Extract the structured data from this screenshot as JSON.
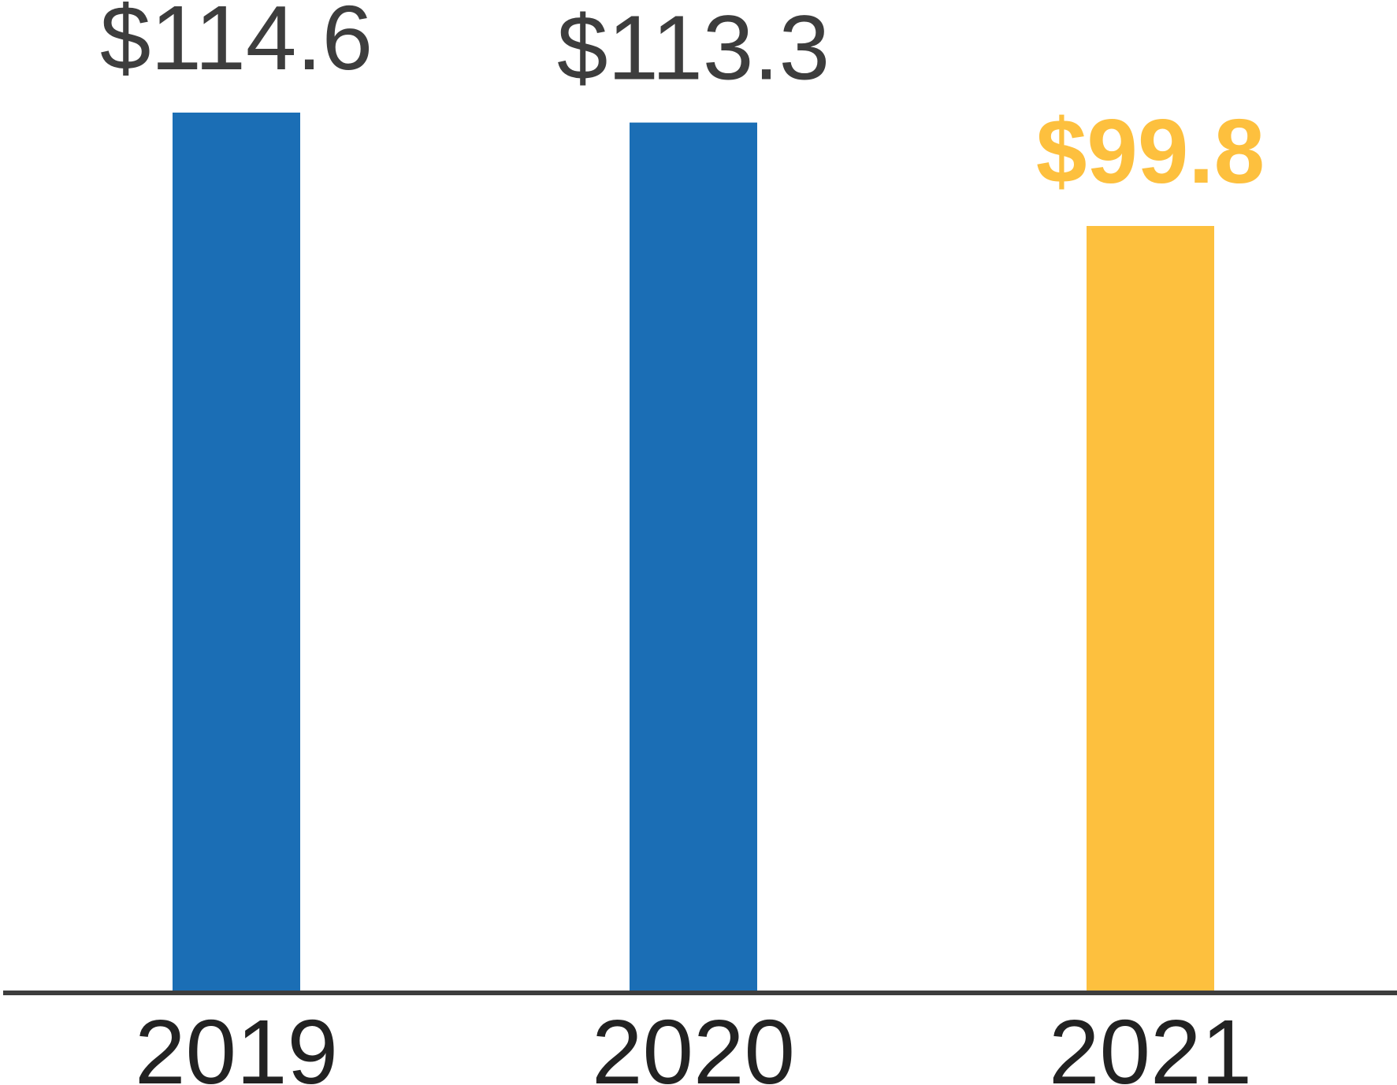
{
  "chart_data": {
    "type": "bar",
    "categories": [
      "2019",
      "2020",
      "2021"
    ],
    "values": [
      114.6,
      113.3,
      99.8
    ],
    "value_labels": [
      "$114.6",
      "$113.3",
      "$99.8"
    ],
    "highlight_index": 2,
    "title": "",
    "xlabel": "",
    "ylabel": "",
    "ylim": [
      0,
      114.6
    ],
    "grid": false,
    "legend": "none",
    "colors": {
      "bar": "#1b6eb5",
      "highlight": "#fdc03e",
      "label": "#3d3d3d",
      "axis": "#3d3d3d",
      "tick": "#222222"
    }
  }
}
